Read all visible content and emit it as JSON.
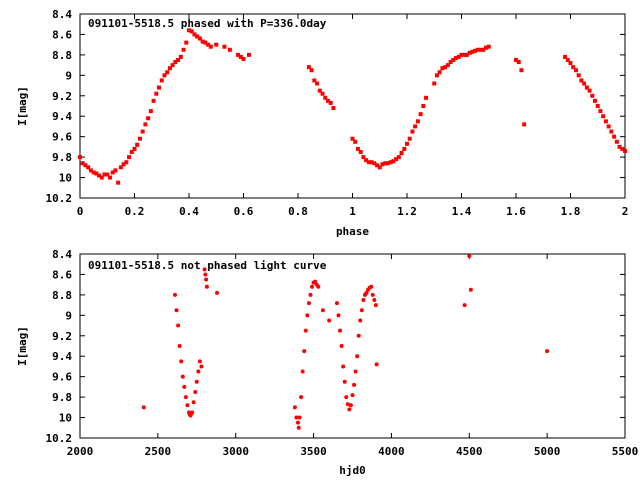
{
  "colors": {
    "points": "#ff0000",
    "axes": "#000000",
    "background": "#ffffff"
  },
  "chart_data": [
    {
      "type": "scatter",
      "title": "091101-5518.5 phased with P=336.0day",
      "xlabel": "phase",
      "ylabel": "I[mag]",
      "xlim": [
        0,
        2
      ],
      "ylim": [
        10.2,
        8.4
      ],
      "y_inverted": true,
      "xticks": [
        "0",
        "0.2",
        "0.4",
        "0.6",
        "0.8",
        "1",
        "1.2",
        "1.4",
        "1.6",
        "1.8",
        "2"
      ],
      "xtick_values": [
        0,
        0.2,
        0.4,
        0.6,
        0.8,
        1.0,
        1.2,
        1.4,
        1.6,
        1.8,
        2.0
      ],
      "yticks": [
        "8.4",
        "8.6",
        "8.8",
        "9",
        "9.2",
        "9.4",
        "9.6",
        "9.8",
        "10",
        "10.2"
      ],
      "ytick_values": [
        8.4,
        8.6,
        8.8,
        9.0,
        9.2,
        9.4,
        9.6,
        9.8,
        10.0,
        10.2
      ],
      "series": [
        {
          "x": [
            0.0,
            0.01,
            0.02,
            0.03,
            0.04,
            0.05,
            0.06,
            0.07,
            0.08,
            0.09,
            0.1,
            0.11,
            0.12,
            0.13,
            0.14,
            0.15,
            0.16,
            0.17,
            0.18,
            0.19,
            0.2,
            0.21,
            0.22,
            0.23,
            0.24,
            0.25,
            0.26,
            0.27,
            0.28,
            0.29,
            0.3,
            0.31,
            0.32,
            0.33,
            0.34,
            0.35,
            0.36,
            0.37,
            0.38,
            0.39,
            0.4,
            0.41,
            0.42,
            0.43,
            0.44,
            0.45,
            0.46,
            0.47,
            0.48,
            0.5,
            0.53,
            0.55,
            0.58,
            0.59,
            0.6,
            0.62,
            0.84,
            0.85,
            0.86,
            0.87,
            0.88,
            0.89,
            0.9,
            0.91,
            0.92,
            0.93,
            1.0,
            1.01,
            1.02,
            1.03,
            1.04,
            1.05,
            1.06,
            1.07,
            1.08,
            1.09,
            1.1,
            1.11,
            1.12,
            1.13,
            1.14,
            1.15,
            1.16,
            1.17,
            1.18,
            1.19,
            1.2,
            1.21,
            1.22,
            1.23,
            1.24,
            1.25,
            1.26,
            1.27,
            1.3,
            1.31,
            1.32,
            1.33,
            1.34,
            1.35,
            1.36,
            1.37,
            1.38,
            1.39,
            1.4,
            1.41,
            1.42,
            1.43,
            1.44,
            1.45,
            1.46,
            1.47,
            1.48,
            1.49,
            1.5,
            1.6,
            1.61,
            1.62,
            1.63,
            1.78,
            1.79,
            1.8,
            1.81,
            1.82,
            1.83,
            1.84,
            1.85,
            1.86,
            1.87,
            1.88,
            1.89,
            1.9,
            1.91,
            1.92,
            1.93,
            1.94,
            1.95,
            1.96,
            1.97,
            1.98,
            1.99,
            2.0
          ],
          "y": [
            9.8,
            9.86,
            9.88,
            9.9,
            9.93,
            9.95,
            9.96,
            9.98,
            10.0,
            9.97,
            9.97,
            10.0,
            9.95,
            9.93,
            10.05,
            9.9,
            9.87,
            9.85,
            9.8,
            9.75,
            9.72,
            9.68,
            9.62,
            9.55,
            9.48,
            9.42,
            9.35,
            9.25,
            9.18,
            9.12,
            9.05,
            9.0,
            8.97,
            8.93,
            8.9,
            8.87,
            8.85,
            8.82,
            8.75,
            8.68,
            8.56,
            8.57,
            8.6,
            8.62,
            8.64,
            8.67,
            8.68,
            8.7,
            8.72,
            8.7,
            8.72,
            8.75,
            8.8,
            8.82,
            8.84,
            8.8,
            8.92,
            8.95,
            9.05,
            9.08,
            9.15,
            9.18,
            9.22,
            9.25,
            9.27,
            9.32,
            9.62,
            9.65,
            9.72,
            9.75,
            9.8,
            9.83,
            9.85,
            9.85,
            9.86,
            9.88,
            9.9,
            9.87,
            9.86,
            9.86,
            9.85,
            9.84,
            9.82,
            9.8,
            9.76,
            9.72,
            9.67,
            9.62,
            9.55,
            9.5,
            9.45,
            9.38,
            9.3,
            9.22,
            9.08,
            9.0,
            8.97,
            8.93,
            8.92,
            8.9,
            8.87,
            8.85,
            8.83,
            8.82,
            8.8,
            8.8,
            8.8,
            8.78,
            8.77,
            8.76,
            8.75,
            8.75,
            8.75,
            8.73,
            8.72,
            8.85,
            8.87,
            8.95,
            9.48,
            8.82,
            8.85,
            8.88,
            8.92,
            8.95,
            9.0,
            9.05,
            9.08,
            9.12,
            9.15,
            9.2,
            9.25,
            9.3,
            9.35,
            9.4,
            9.45,
            9.5,
            9.55,
            9.6,
            9.65,
            9.7,
            9.72,
            9.74
          ]
        }
      ]
    },
    {
      "type": "scatter",
      "title": "091101-5518.5 not phased light curve",
      "xlabel": "hjd0",
      "ylabel": "I[mag]",
      "xlim": [
        2000,
        5500
      ],
      "ylim": [
        10.2,
        8.4
      ],
      "y_inverted": true,
      "xticks": [
        "2000",
        "2500",
        "3000",
        "3500",
        "4000",
        "4500",
        "5000",
        "5500"
      ],
      "xtick_values": [
        2000,
        2500,
        3000,
        3500,
        4000,
        4500,
        5000,
        5500
      ],
      "yticks": [
        "8.4",
        "8.6",
        "8.8",
        "9",
        "9.2",
        "9.4",
        "9.6",
        "9.8",
        "10",
        "10.2"
      ],
      "ytick_values": [
        8.4,
        8.6,
        8.8,
        9.0,
        9.2,
        9.4,
        9.6,
        9.8,
        10.0,
        10.2
      ],
      "series": [
        {
          "x": [
            2410,
            2610,
            2620,
            2630,
            2640,
            2650,
            2660,
            2670,
            2680,
            2690,
            2700,
            2705,
            2710,
            2715,
            2720,
            2730,
            2740,
            2750,
            2760,
            2770,
            2780,
            2800,
            2805,
            2810,
            2815,
            2880,
            3380,
            3390,
            3400,
            3405,
            3410,
            3420,
            3430,
            3440,
            3450,
            3460,
            3470,
            3480,
            3490,
            3500,
            3510,
            3520,
            3530,
            3560,
            3600,
            3650,
            3660,
            3670,
            3680,
            3690,
            3700,
            3710,
            3720,
            3730,
            3740,
            3750,
            3760,
            3770,
            3780,
            3790,
            3800,
            3810,
            3820,
            3830,
            3840,
            3850,
            3860,
            3870,
            3880,
            3890,
            3900,
            3905,
            4470,
            4500,
            4510,
            5000
          ],
          "y": [
            9.9,
            8.8,
            8.95,
            9.1,
            9.3,
            9.45,
            9.6,
            9.7,
            9.8,
            9.88,
            9.95,
            9.97,
            9.98,
            9.96,
            9.95,
            9.85,
            9.75,
            9.65,
            9.55,
            9.45,
            9.5,
            8.55,
            8.6,
            8.65,
            8.72,
            8.78,
            9.9,
            10.0,
            10.05,
            10.1,
            10.0,
            9.8,
            9.55,
            9.35,
            9.15,
            9.0,
            8.88,
            8.8,
            8.72,
            8.68,
            8.67,
            8.7,
            8.72,
            8.95,
            9.05,
            8.88,
            9.0,
            9.15,
            9.3,
            9.5,
            9.65,
            9.8,
            9.87,
            9.92,
            9.88,
            9.78,
            9.68,
            9.55,
            9.4,
            9.2,
            9.05,
            8.95,
            8.85,
            8.8,
            8.78,
            8.75,
            8.73,
            8.72,
            8.8,
            8.85,
            8.9,
            9.48,
            8.9,
            8.42,
            8.75,
            9.35
          ]
        }
      ]
    }
  ]
}
